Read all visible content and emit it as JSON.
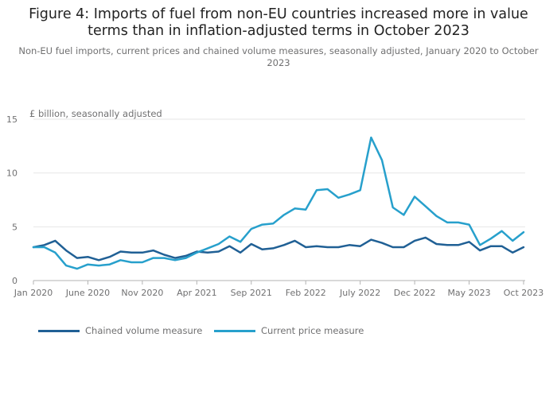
{
  "title": "Figure 4: Imports of fuel from non-EU countries increased more in value terms than in inflation-adjusted terms in October 2023",
  "subtitle": "Non-EU fuel imports, current prices and chained volume measures, seasonally adjusted, January 2020 to October 2023",
  "colors": {
    "chained": "#206095",
    "current": "#27a0cc",
    "grid": "#e6e6e6",
    "axis": "#b3b3b3",
    "tick_text": "#707071"
  },
  "chart_data": {
    "type": "line",
    "title": "Figure 4: Imports of fuel from non-EU countries increased more in value terms than in inflation-adjusted terms in October 2023",
    "subtitle": "Non-EU fuel imports, current prices and chained volume measures, seasonally adjusted, January 2020 to October 2023",
    "ylabel": "£ billion, seasonally adjusted",
    "xlabel": "",
    "ylim": [
      0,
      15
    ],
    "yticks": [
      0,
      5,
      10,
      15
    ],
    "grid": true,
    "legend_position": "bottom-left",
    "x": [
      "Jan 2020",
      "Feb 2020",
      "Mar 2020",
      "Apr 2020",
      "May 2020",
      "Jun 2020",
      "Jul 2020",
      "Aug 2020",
      "Sep 2020",
      "Oct 2020",
      "Nov 2020",
      "Dec 2020",
      "Jan 2021",
      "Feb 2021",
      "Mar 2021",
      "Apr 2021",
      "May 2021",
      "Jun 2021",
      "Jul 2021",
      "Aug 2021",
      "Sep 2021",
      "Oct 2021",
      "Nov 2021",
      "Dec 2021",
      "Jan 2022",
      "Feb 2022",
      "Mar 2022",
      "Apr 2022",
      "May 2022",
      "Jun 2022",
      "Jul 2022",
      "Aug 2022",
      "Sep 2022",
      "Oct 2022",
      "Nov 2022",
      "Dec 2022",
      "Jan 2023",
      "Feb 2023",
      "Mar 2023",
      "Apr 2023",
      "May 2023",
      "Jun 2023",
      "Jul 2023",
      "Aug 2023",
      "Sep 2023",
      "Oct 2023"
    ],
    "xticks": [
      "Jan 2020",
      "June 2020",
      "Nov 2020",
      "Apr 2021",
      "Sep 2021",
      "Feb 2022",
      "July 2022",
      "Dec 2022",
      "May 2023",
      "Oct 2023"
    ],
    "xtick_index": [
      0,
      5,
      10,
      15,
      20,
      25,
      30,
      35,
      40,
      45
    ],
    "series": [
      {
        "name": "Chained volume measure",
        "color": "#206095",
        "values": [
          3.1,
          3.3,
          3.7,
          2.8,
          2.1,
          2.2,
          1.9,
          2.2,
          2.7,
          2.6,
          2.6,
          2.8,
          2.4,
          2.1,
          2.3,
          2.7,
          2.6,
          2.7,
          3.2,
          2.6,
          3.4,
          2.9,
          3.0,
          3.3,
          3.7,
          3.1,
          3.2,
          3.1,
          3.1,
          3.3,
          3.2,
          3.8,
          3.5,
          3.1,
          3.1,
          3.7,
          4.0,
          3.4,
          3.3,
          3.3,
          3.6,
          2.8,
          3.2,
          3.2,
          2.6,
          3.1
        ]
      },
      {
        "name": "Current price measure",
        "color": "#27a0cc",
        "values": [
          3.1,
          3.1,
          2.6,
          1.4,
          1.1,
          1.5,
          1.4,
          1.5,
          1.9,
          1.7,
          1.7,
          2.1,
          2.1,
          1.9,
          2.1,
          2.6,
          3.0,
          3.4,
          4.1,
          3.6,
          4.8,
          5.2,
          5.3,
          6.1,
          6.7,
          6.6,
          8.4,
          8.5,
          7.7,
          8.0,
          8.4,
          13.3,
          11.2,
          6.8,
          6.1,
          7.8,
          6.9,
          6.0,
          5.4,
          5.4,
          5.2,
          3.3,
          3.9,
          4.6,
          3.7,
          4.5
        ]
      }
    ]
  }
}
